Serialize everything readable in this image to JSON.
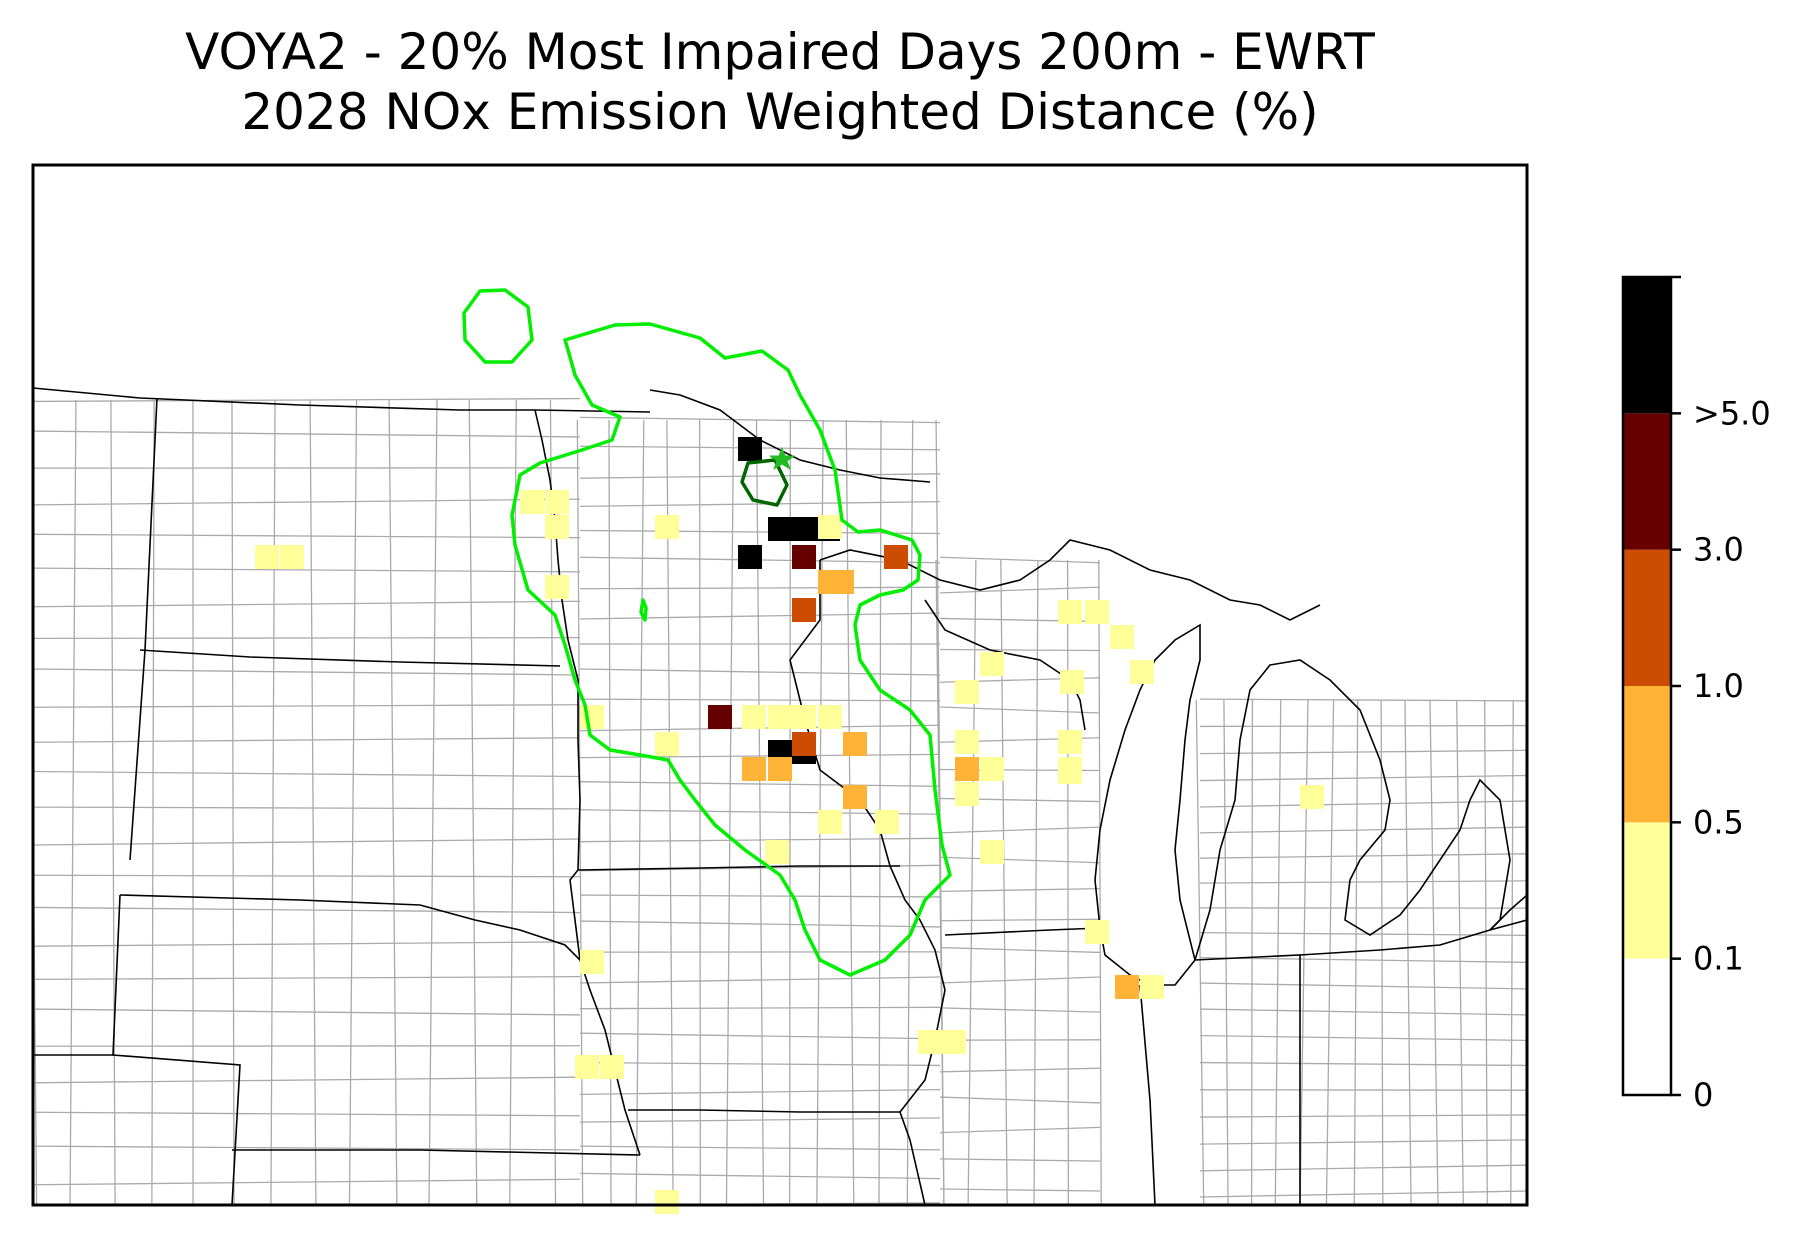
{
  "title": {
    "line1": "VOYA2 - 20% Most Impaired Days 200m - EWRT",
    "line2": "2028 NOx Emission Weighted Distance (%)"
  },
  "map": {
    "region": "Upper Midwest United States (North Dakota, South Dakota, Nebraska, Minnesota, Iowa, Wisconsin, Michigan, Illinois)",
    "boundary_color": "#00ee00",
    "site_boundary_color": "#006600",
    "site_marker_color": "#22bb22",
    "state_line_color": "#000000",
    "county_line_color": "#aaaaaa"
  },
  "colorbar": {
    "bins": [
      {
        "from": "0",
        "to": "0.1",
        "color": "#ffffff"
      },
      {
        "from": "0.1",
        "to": "0.5",
        "color": "#ffff99"
      },
      {
        "from": "0.5",
        "to": "1.0",
        "color": "#feb236"
      },
      {
        "from": "1.0",
        "to": "3.0",
        "color": "#cc4c02"
      },
      {
        "from": "3.0",
        "to": "5.0",
        "color": "#660000"
      },
      {
        "from": "5.0",
        "to": "max",
        "color": "#000000"
      }
    ],
    "tick_labels": [
      "0",
      "0.1",
      "0.5",
      "1.0",
      "3.0",
      ">5.0"
    ]
  }
}
